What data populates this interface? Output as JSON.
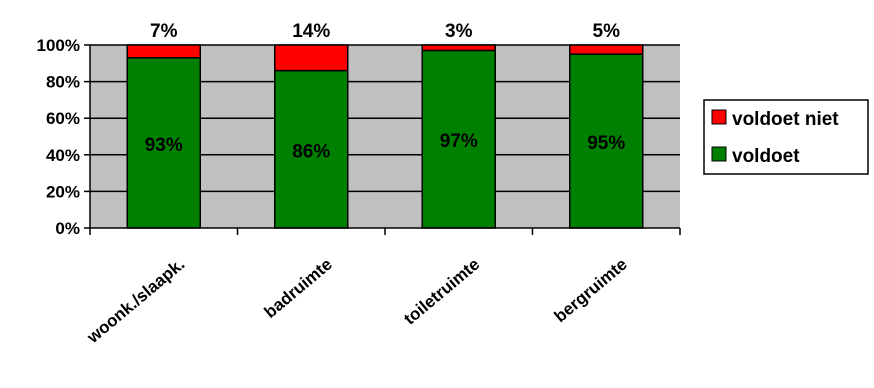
{
  "chart_data": {
    "type": "bar",
    "stacked": true,
    "orientation": "vertical",
    "categories": [
      "woonk./slaapk.",
      "badruimte",
      "toiletruimte",
      "bergruimte"
    ],
    "series": [
      {
        "name": "voldoet",
        "values": [
          93,
          86,
          97,
          95
        ],
        "labels": [
          "93%",
          "86%",
          "97%",
          "95%"
        ],
        "color": "#008000"
      },
      {
        "name": "voldoet niet",
        "values": [
          7,
          14,
          3,
          5
        ],
        "labels": [
          "7%",
          "14%",
          "3%",
          "5%"
        ],
        "color": "#ff0000"
      }
    ],
    "yticks": [
      "0%",
      "20%",
      "40%",
      "60%",
      "80%",
      "100%"
    ],
    "ylim": [
      0,
      100
    ],
    "grid": true,
    "plot_background": "#c0c0c0",
    "legend": {
      "position": "right",
      "entries": [
        "voldoet niet",
        "voldoet"
      ]
    }
  }
}
